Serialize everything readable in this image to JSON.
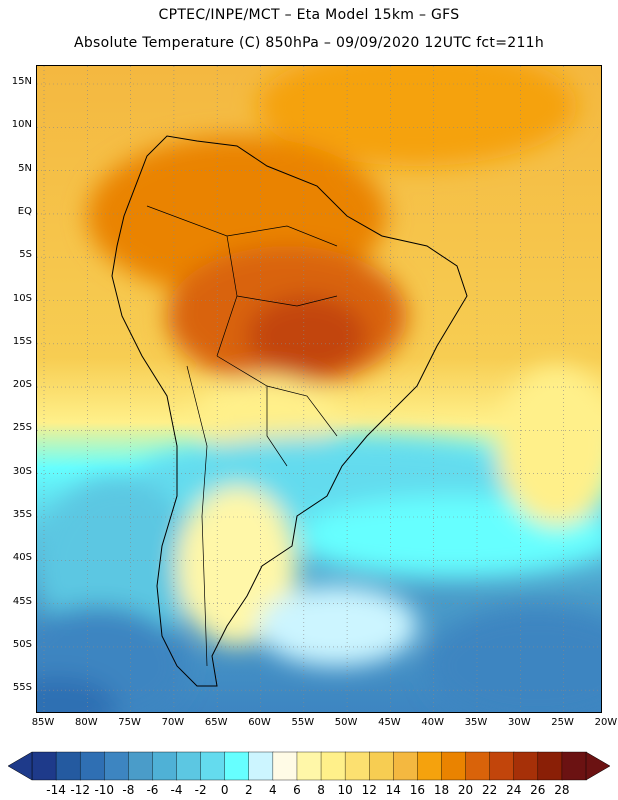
{
  "title_line1": "CPTEC/INPE/MCT –  Eta Model 15km – GFS",
  "title_line2": "Absolute Temperature (C) 850hPa – 09/09/2020 12UTC fct=211h",
  "lat_labels": [
    "15N",
    "10N",
    "5N",
    "EQ",
    "5S",
    "10S",
    "15S",
    "20S",
    "25S",
    "30S",
    "35S",
    "40S",
    "45S",
    "50S",
    "55S"
  ],
  "lon_labels": [
    "85W",
    "80W",
    "75W",
    "70W",
    "65W",
    "60W",
    "55W",
    "50W",
    "45W",
    "40W",
    "35W",
    "30W",
    "25W",
    "20W"
  ],
  "colorbar": {
    "ticks": [
      "-14",
      "-12",
      "-10",
      "-8",
      "-6",
      "-4",
      "-2",
      "0",
      "2",
      "4",
      "6",
      "8",
      "10",
      "12",
      "14",
      "16",
      "18",
      "20",
      "22",
      "24",
      "26",
      "28"
    ],
    "colors": [
      "#1e3a8a",
      "#245aa0",
      "#2f6fb3",
      "#3d85c1",
      "#4a9cc9",
      "#4fb1d6",
      "#5cc7e2",
      "#64dbee",
      "#66ffff",
      "#ccf5ff",
      "#fffbe6",
      "#fff7a8",
      "#fff08a",
      "#fce070",
      "#f7cd52",
      "#f4b840",
      "#f5a20d",
      "#ea8300",
      "#d9630a",
      "#c2450b",
      "#a63008",
      "#8a1f06",
      "#6b1212"
    ]
  },
  "map": {
    "region": "South America",
    "lon_range": [
      -85,
      -20
    ],
    "lat_range": [
      -57,
      16
    ],
    "gridlines": true
  }
}
